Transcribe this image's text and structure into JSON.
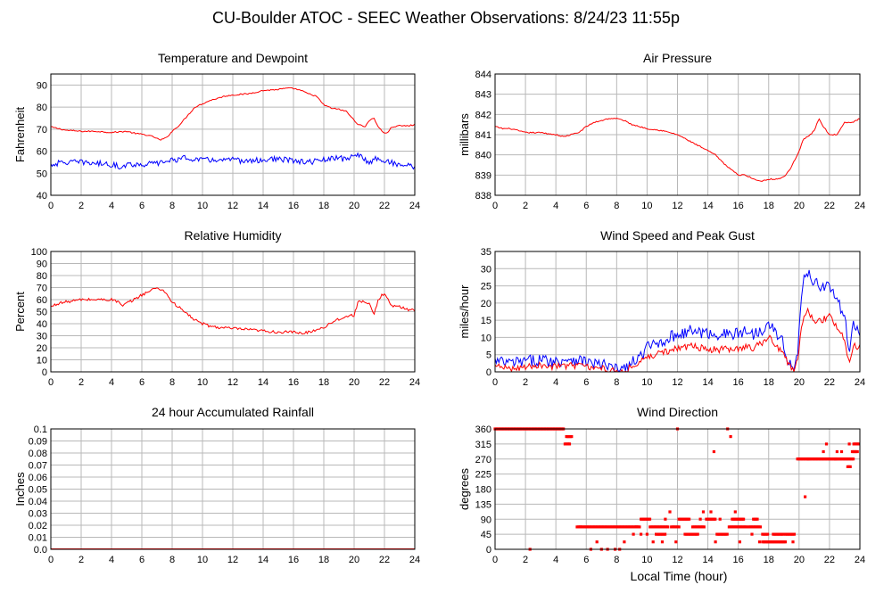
{
  "page": {
    "title": "CU-Boulder ATOC - SEEC Weather Observations: 8/24/23 11:55p",
    "shared_xlabel": "Local Time (hour)"
  },
  "colors": {
    "red": "#ff0000",
    "blue": "#0000ff",
    "grid": "#b8b8b8"
  },
  "chart_data": [
    {
      "id": "temp",
      "type": "line",
      "title": "Temperature and Dewpoint",
      "xlabel": "",
      "ylabel": "Fahrenheit",
      "xlim": [
        0,
        24
      ],
      "ylim": [
        40,
        95
      ],
      "xticks": [
        0,
        2,
        4,
        6,
        8,
        10,
        12,
        14,
        16,
        18,
        20,
        22,
        24
      ],
      "yticks": [
        40,
        50,
        60,
        70,
        80,
        90
      ],
      "grid": true,
      "series": [
        {
          "color": "red",
          "noise": 0.3,
          "x": [
            0,
            1,
            2,
            3,
            4,
            5,
            5.6,
            6.2,
            6.8,
            7.2,
            7.6,
            8,
            8.5,
            9,
            9.5,
            10,
            10.5,
            11,
            11.5,
            12,
            13,
            14,
            15,
            15.5,
            16,
            16.5,
            17,
            17.5,
            18,
            18.5,
            19,
            19.5,
            20,
            20.3,
            20.7,
            21,
            21.3,
            21.6,
            22,
            22.2,
            22.5,
            23,
            23.5,
            24
          ],
          "values": [
            71,
            69.5,
            69,
            69,
            68.5,
            69,
            68,
            67.5,
            66.5,
            65,
            66,
            69,
            72,
            76,
            80,
            81.5,
            83,
            84,
            85,
            85.5,
            86,
            87.5,
            88,
            88.5,
            88.5,
            87.5,
            86,
            85,
            81,
            79.5,
            79,
            78,
            74,
            72,
            71,
            74,
            75,
            71,
            68,
            68.5,
            71,
            71.5,
            71.5,
            72
          ]
        },
        {
          "color": "blue",
          "noise": 1.3,
          "x": [
            0,
            1,
            2,
            3,
            4,
            4.5,
            5,
            6,
            7,
            8,
            9,
            10,
            11,
            12,
            13,
            14,
            15,
            16,
            17,
            18,
            19,
            19.5,
            20,
            20.5,
            21,
            21.5,
            22,
            23,
            24
          ],
          "values": [
            54,
            55,
            55,
            54.5,
            54,
            53,
            54,
            54,
            54.5,
            56,
            57,
            56,
            56,
            56,
            55.5,
            56,
            56.5,
            55.5,
            55,
            56,
            57,
            56,
            59,
            57,
            55,
            57,
            55.5,
            54,
            53
          ]
        }
      ]
    },
    {
      "id": "pressure",
      "type": "line",
      "title": "Air Pressure",
      "xlabel": "",
      "ylabel": "millibars",
      "xlim": [
        0,
        24
      ],
      "ylim": [
        838,
        844
      ],
      "xticks": [
        0,
        2,
        4,
        6,
        8,
        10,
        12,
        14,
        16,
        18,
        20,
        22,
        24
      ],
      "yticks": [
        838,
        839,
        840,
        841,
        842,
        843,
        844
      ],
      "grid": true,
      "series": [
        {
          "color": "red",
          "noise": 0.03,
          "x": [
            0,
            0.5,
            1,
            2,
            3,
            4,
            4.5,
            5,
            5.5,
            6,
            6.5,
            7,
            7.5,
            8,
            8.5,
            9,
            9.5,
            10,
            11,
            11.5,
            12,
            12.5,
            13,
            13.5,
            14,
            14.5,
            15,
            15.5,
            16,
            16.5,
            17,
            17.5,
            18,
            18.5,
            19,
            19.5,
            20,
            20.3,
            20.6,
            21,
            21.3,
            21.6,
            22,
            22.5,
            23,
            23.5,
            24
          ],
          "values": [
            841.4,
            841.3,
            841.3,
            841.1,
            841.1,
            841,
            840.9,
            841,
            841.1,
            841.4,
            841.6,
            841.7,
            841.8,
            841.8,
            841.7,
            841.5,
            841.4,
            841.3,
            841.2,
            841.1,
            841,
            840.8,
            840.6,
            840.4,
            840.2,
            840,
            839.6,
            839.3,
            839,
            839,
            838.8,
            838.7,
            838.8,
            838.8,
            838.9,
            839.4,
            840.2,
            840.8,
            840.9,
            841.2,
            841.8,
            841.4,
            841,
            841,
            841.6,
            841.6,
            841.8
          ]
        }
      ]
    },
    {
      "id": "humidity",
      "type": "line",
      "title": "Relative Humidity",
      "xlabel": "",
      "ylabel": "Percent",
      "xlim": [
        0,
        24
      ],
      "ylim": [
        0,
        100
      ],
      "xticks": [
        0,
        2,
        4,
        6,
        8,
        10,
        12,
        14,
        16,
        18,
        20,
        22,
        24
      ],
      "yticks": [
        0,
        10,
        20,
        30,
        40,
        50,
        60,
        70,
        80,
        90,
        100
      ],
      "grid": true,
      "series": [
        {
          "color": "red",
          "noise": 1.2,
          "x": [
            0,
            0.5,
            1,
            2,
            3,
            4,
            4.5,
            4.7,
            5,
            5.5,
            6,
            6.5,
            7,
            7.5,
            8,
            8.5,
            9,
            9.5,
            10,
            10.5,
            11,
            12,
            13,
            14,
            15,
            16,
            16.5,
            17,
            17.5,
            18,
            18.5,
            19,
            19.5,
            20,
            20.3,
            20.6,
            21,
            21.3,
            21.6,
            22,
            22.3,
            22.5,
            23,
            23.5,
            24
          ],
          "values": [
            54,
            57,
            58,
            60,
            60,
            60,
            58,
            54,
            57,
            60,
            64,
            67,
            70,
            67,
            58,
            53,
            48,
            43,
            40,
            38,
            37,
            36,
            35,
            34,
            33,
            33,
            32,
            33,
            35,
            37,
            41,
            44,
            46,
            47,
            60,
            58,
            56,
            47,
            60,
            66,
            58,
            55,
            54,
            52,
            51
          ]
        }
      ]
    },
    {
      "id": "wind",
      "type": "line",
      "title": "Wind Speed and Peak Gust",
      "xlabel": "",
      "ylabel": "miles/hour",
      "xlim": [
        0,
        24
      ],
      "ylim": [
        0,
        35
      ],
      "xticks": [
        0,
        2,
        4,
        6,
        8,
        10,
        12,
        14,
        16,
        18,
        20,
        22,
        24
      ],
      "yticks": [
        0,
        5,
        10,
        15,
        20,
        25,
        30,
        35
      ],
      "grid": true,
      "series": [
        {
          "color": "blue",
          "noise": 1.8,
          "x": [
            0,
            1,
            2,
            3,
            4,
            5,
            6,
            7,
            7.5,
            8,
            8.5,
            9,
            9.5,
            10,
            11,
            12,
            13,
            14,
            15,
            16,
            16.5,
            17,
            17.5,
            18,
            18.5,
            19,
            19.3,
            19.6,
            19.9,
            20.2,
            20.5,
            21,
            21.5,
            22,
            22.5,
            23,
            23.3,
            23.6,
            24
          ],
          "values": [
            3,
            2.5,
            3,
            3.5,
            3,
            4,
            3,
            2,
            1.5,
            0.5,
            1,
            2.5,
            4,
            7,
            9,
            11,
            12,
            11,
            11,
            11,
            12,
            11,
            12,
            15,
            11,
            8,
            3,
            0.5,
            5,
            24,
            30,
            26,
            25,
            25,
            21,
            15,
            7,
            14,
            11
          ]
        },
        {
          "color": "red",
          "noise": 1.0,
          "x": [
            0,
            1,
            2,
            3,
            4,
            5,
            6,
            7,
            7.5,
            8,
            8.5,
            9,
            9.5,
            10,
            11,
            12,
            13,
            14,
            15,
            16,
            16.5,
            17,
            17.5,
            18,
            18.5,
            19,
            19.3,
            19.6,
            19.9,
            20.2,
            20.5,
            21,
            21.5,
            22,
            22.5,
            23,
            23.3,
            23.6,
            24
          ],
          "values": [
            1.5,
            1,
            1.5,
            2,
            1.5,
            2,
            1.5,
            1,
            0.5,
            0.2,
            0.5,
            1.5,
            2.5,
            4.5,
            5.5,
            7,
            7.5,
            6.5,
            6.5,
            6.5,
            7.5,
            7,
            8,
            10,
            7.5,
            5,
            2,
            0.3,
            3,
            14,
            18,
            15,
            15,
            16,
            13,
            9,
            2,
            8,
            7
          ]
        }
      ]
    },
    {
      "id": "rain",
      "type": "line",
      "title": "24 hour Accumulated Rainfall",
      "xlabel": "",
      "ylabel": "Inches",
      "xlim": [
        0,
        24
      ],
      "ylim": [
        0,
        0.1
      ],
      "xticks": [
        0,
        2,
        4,
        6,
        8,
        10,
        12,
        14,
        16,
        18,
        20,
        22,
        24
      ],
      "yticks": [
        0.0,
        0.01,
        0.02,
        0.03,
        0.04,
        0.05,
        0.06,
        0.07,
        0.08,
        0.09,
        0.1
      ],
      "ytick_labels": [
        "0.0",
        "0.01",
        "0.02",
        "0.03",
        "0.04",
        "0.05",
        "0.06",
        "0.07",
        "0.08",
        "0.09",
        "0.1"
      ],
      "grid": true,
      "series": [
        {
          "color": "red",
          "noise": 0,
          "x": [
            0,
            24
          ],
          "values": [
            0,
            0
          ]
        }
      ]
    },
    {
      "id": "direction",
      "type": "scatter",
      "title": "Wind Direction",
      "xlabel": "Local Time (hour)",
      "ylabel": "degrees",
      "xlim": [
        0,
        24
      ],
      "ylim": [
        0,
        360
      ],
      "xticks": [
        0,
        2,
        4,
        6,
        8,
        10,
        12,
        14,
        16,
        18,
        20,
        22,
        24
      ],
      "yticks": [
        0,
        45,
        90,
        135,
        180,
        225,
        270,
        315,
        360
      ],
      "grid": true,
      "series": [
        {
          "color": "red",
          "segments": [
            {
              "x0": 0.0,
              "x1": 4.55,
              "y": 360
            },
            {
              "x0": 4.6,
              "x1": 4.9,
              "y": 315
            },
            {
              "x0": 4.7,
              "x1": 5.1,
              "y": 337
            },
            {
              "x0": 5.4,
              "x1": 7.4,
              "y": 67
            },
            {
              "x0": 7.5,
              "x1": 9.5,
              "y": 67
            },
            {
              "x0": 9.6,
              "x1": 10.2,
              "y": 90
            },
            {
              "x0": 10.2,
              "x1": 11.4,
              "y": 67
            },
            {
              "x0": 10.6,
              "x1": 11.2,
              "y": 45
            },
            {
              "x0": 11.6,
              "x1": 12.1,
              "y": 67
            },
            {
              "x0": 12.1,
              "x1": 12.8,
              "y": 90
            },
            {
              "x0": 12.5,
              "x1": 13.4,
              "y": 45
            },
            {
              "x0": 13.0,
              "x1": 13.8,
              "y": 67
            },
            {
              "x0": 13.9,
              "x1": 14.5,
              "y": 90
            },
            {
              "x0": 14.6,
              "x1": 15.3,
              "y": 45
            },
            {
              "x0": 15.4,
              "x1": 16.6,
              "y": 67
            },
            {
              "x0": 15.6,
              "x1": 16.4,
              "y": 90
            },
            {
              "x0": 16.7,
              "x1": 17.5,
              "y": 67
            },
            {
              "x0": 17.0,
              "x1": 17.3,
              "y": 90
            },
            {
              "x0": 17.6,
              "x1": 18.0,
              "y": 45
            },
            {
              "x0": 17.6,
              "x1": 19.1,
              "y": 22
            },
            {
              "x0": 18.3,
              "x1": 19.0,
              "y": 45
            },
            {
              "x0": 19.1,
              "x1": 19.7,
              "y": 45
            },
            {
              "x0": 19.9,
              "x1": 22.4,
              "y": 270
            },
            {
              "x0": 22.4,
              "x1": 23.6,
              "y": 270
            },
            {
              "x0": 23.2,
              "x1": 23.4,
              "y": 247
            },
            {
              "x0": 23.5,
              "x1": 23.9,
              "y": 292
            },
            {
              "x0": 23.6,
              "x1": 24.0,
              "y": 315
            }
          ],
          "points": [
            {
              "x": 2.3,
              "y": 0
            },
            {
              "x": 4.9,
              "y": 315
            },
            {
              "x": 5.6,
              "y": 67
            },
            {
              "x": 6.3,
              "y": 0
            },
            {
              "x": 6.7,
              "y": 22
            },
            {
              "x": 7.0,
              "y": 0
            },
            {
              "x": 7.4,
              "y": 0
            },
            {
              "x": 7.9,
              "y": 0
            },
            {
              "x": 8.2,
              "y": 0
            },
            {
              "x": 8.5,
              "y": 22
            },
            {
              "x": 9.1,
              "y": 45
            },
            {
              "x": 9.3,
              "y": 67
            },
            {
              "x": 9.6,
              "y": 45
            },
            {
              "x": 10.0,
              "y": 45
            },
            {
              "x": 10.4,
              "y": 22
            },
            {
              "x": 11.0,
              "y": 22
            },
            {
              "x": 11.2,
              "y": 90
            },
            {
              "x": 11.5,
              "y": 112
            },
            {
              "x": 11.9,
              "y": 22
            },
            {
              "x": 12.0,
              "y": 360
            },
            {
              "x": 13.5,
              "y": 90
            },
            {
              "x": 13.7,
              "y": 112
            },
            {
              "x": 14.2,
              "y": 112
            },
            {
              "x": 14.5,
              "y": 22
            },
            {
              "x": 14.4,
              "y": 292
            },
            {
              "x": 14.8,
              "y": 90
            },
            {
              "x": 15.3,
              "y": 360
            },
            {
              "x": 15.5,
              "y": 337
            },
            {
              "x": 15.8,
              "y": 112
            },
            {
              "x": 16.1,
              "y": 22
            },
            {
              "x": 16.9,
              "y": 45
            },
            {
              "x": 17.4,
              "y": 22
            },
            {
              "x": 19.6,
              "y": 22
            },
            {
              "x": 20.4,
              "y": 157
            },
            {
              "x": 20.6,
              "y": 270
            },
            {
              "x": 21.6,
              "y": 292
            },
            {
              "x": 21.8,
              "y": 315
            },
            {
              "x": 22.5,
              "y": 292
            },
            {
              "x": 22.8,
              "y": 292
            },
            {
              "x": 23.3,
              "y": 315
            }
          ]
        }
      ]
    }
  ]
}
